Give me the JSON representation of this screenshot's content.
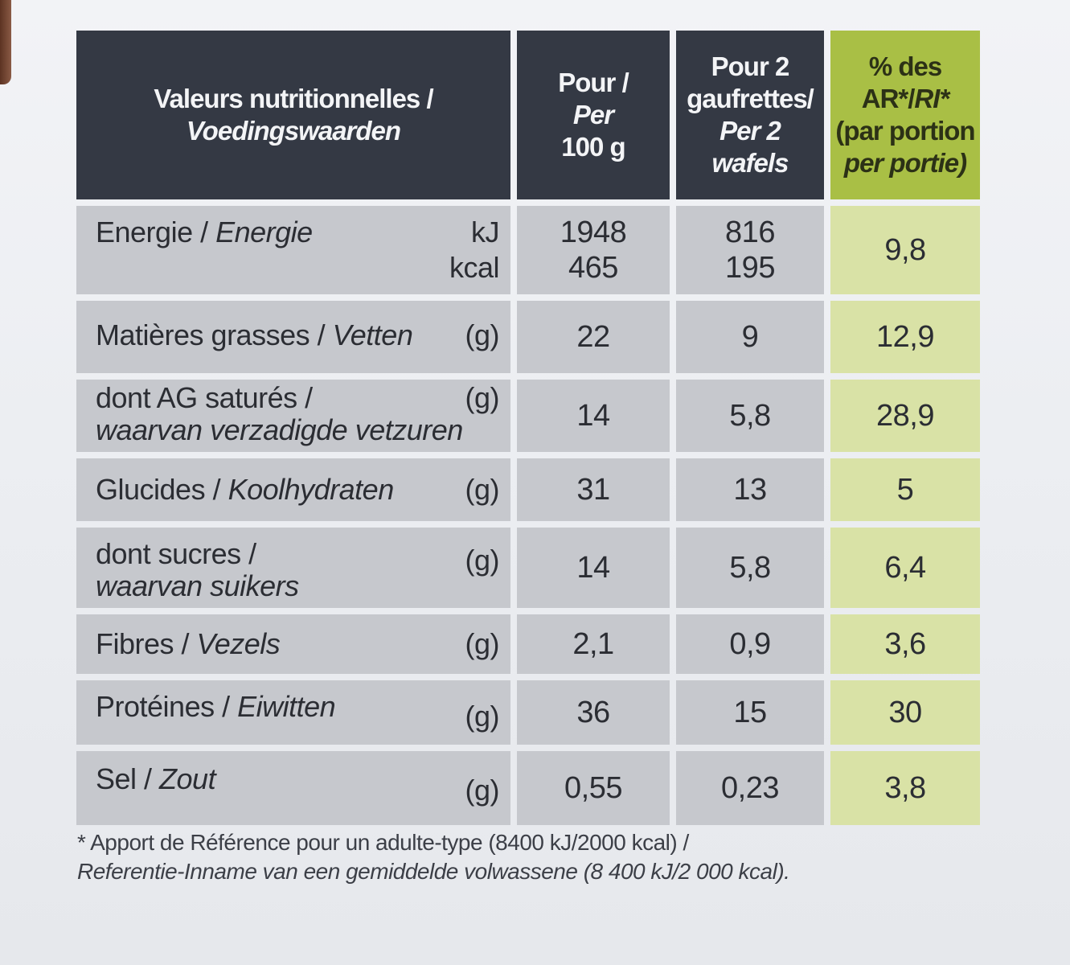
{
  "header": {
    "col0_line1": "Valeurs nutritionnelles /",
    "col0_line2": "Voedingswaarden",
    "col1_line1": "Pour /",
    "col1_line2": "Per",
    "col1_line3": "100 g",
    "col2_line1": "Pour 2",
    "col2_line2": "gaufrettes/",
    "col2_line3": "Per 2",
    "col2_line4": "wafels",
    "col3_line1": "% des",
    "col3_line2a": "AR*/",
    "col3_line2b": "RI*",
    "col3_line3": "(par portion",
    "col3_line4": "per portie)"
  },
  "rows": [
    {
      "fr": "Energie / ",
      "nl": "Energie",
      "unit": "kJ",
      "unit2": "kcal",
      "per100": "1948",
      "per100_2": "465",
      "per2": "816",
      "per2_2": "195",
      "ri": "9,8"
    },
    {
      "fr": "Matières grasses / ",
      "nl": "Vetten",
      "unit": "(g)",
      "per100": "22",
      "per2": "9",
      "ri": "12,9"
    },
    {
      "fr": "dont AG saturés /",
      "nl": "waarvan verzadigde vetzuren",
      "unit": "(g)",
      "per100": "14",
      "per2": "5,8",
      "ri": "28,9"
    },
    {
      "fr": "Glucides / ",
      "nl": "Koolhydraten",
      "unit": "(g)",
      "per100": "31",
      "per2": "13",
      "ri": "5"
    },
    {
      "fr": "dont sucres /",
      "nl": "waarvan suikers",
      "unit": "(g)",
      "per100": "14",
      "per2": "5,8",
      "ri": "6,4"
    },
    {
      "fr": "Fibres / ",
      "nl": "Vezels",
      "unit": "(g)",
      "per100": "2,1",
      "per2": "0,9",
      "ri": "3,6"
    },
    {
      "fr": "Protéines / ",
      "nl": "Eiwitten",
      "unit": "(g)",
      "per100": "36",
      "per2": "15",
      "ri": "30"
    },
    {
      "fr": "Sel / ",
      "nl": "Zout",
      "unit": "(g)",
      "per100": "0,55",
      "per2": "0,23",
      "ri": "3,8"
    }
  ],
  "footnote": {
    "line1": "* Apport de Référence pour un adulte-type (8400 kJ/2000 kcal) /",
    "line2": "Referentie-Inname van een gemiddelde volwassene (8 400 kJ/2 000 kcal)."
  },
  "colors": {
    "header": "#343944",
    "header_highlight": "#a9bf45",
    "cell": "#c6c8cd",
    "cell_highlight": "#d9e2a6"
  }
}
